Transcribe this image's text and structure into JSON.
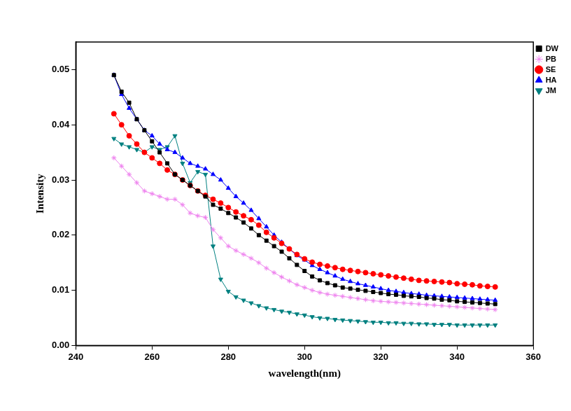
{
  "chart_data": {
    "type": "line",
    "x_label": "wavelength(nm)",
    "y_label": "Intensity",
    "x": [
      250,
      252,
      254,
      256,
      258,
      260,
      262,
      264,
      266,
      268,
      270,
      272,
      274,
      276,
      278,
      280,
      282,
      284,
      286,
      288,
      290,
      292,
      294,
      296,
      298,
      300,
      302,
      304,
      306,
      308,
      310,
      312,
      314,
      316,
      318,
      320,
      322,
      324,
      326,
      328,
      330,
      332,
      334,
      336,
      338,
      340,
      342,
      344,
      346,
      348,
      350
    ],
    "xlim": [
      240,
      360
    ],
    "xticks": [
      240,
      260,
      280,
      300,
      320,
      340,
      360
    ],
    "ylim": [
      0,
      0.055
    ],
    "yticks": [
      {
        "value": 0,
        "label": "0.00"
      },
      {
        "value": 0.01,
        "label": "0.01"
      },
      {
        "value": 0.02,
        "label": "0.02"
      },
      {
        "value": 0.03,
        "label": "0.03"
      },
      {
        "value": 0.04,
        "label": "0.04"
      },
      {
        "value": 0.05,
        "label": "0.05"
      }
    ],
    "grid": false,
    "legend": "top-right",
    "series": [
      {
        "name": "DW",
        "color": "#000000",
        "marker": "square",
        "line_style": "solid",
        "values": [
          0.049,
          0.046,
          0.044,
          0.041,
          0.039,
          0.037,
          0.035,
          0.033,
          0.031,
          0.03,
          0.029,
          0.028,
          0.027,
          0.0255,
          0.0248,
          0.024,
          0.0232,
          0.0223,
          0.0212,
          0.02,
          0.019,
          0.018,
          0.017,
          0.0158,
          0.0146,
          0.0135,
          0.0125,
          0.0118,
          0.0113,
          0.0109,
          0.0105,
          0.0103,
          0.0101,
          0.0099,
          0.0097,
          0.0095,
          0.0093,
          0.0092,
          0.009,
          0.0089,
          0.0088,
          0.0086,
          0.0085,
          0.0083,
          0.0082,
          0.008,
          0.0079,
          0.0078,
          0.0077,
          0.0076,
          0.0075
        ]
      },
      {
        "name": "PB",
        "color": "#ee82ee",
        "marker": "star",
        "line_style": "solid",
        "values": [
          0.034,
          0.0325,
          0.031,
          0.0295,
          0.028,
          0.0275,
          0.027,
          0.0265,
          0.0265,
          0.0255,
          0.024,
          0.0235,
          0.0232,
          0.021,
          0.0195,
          0.018,
          0.0172,
          0.0165,
          0.0158,
          0.015,
          0.014,
          0.0132,
          0.0124,
          0.0117,
          0.011,
          0.0105,
          0.01,
          0.0096,
          0.0093,
          0.0091,
          0.0089,
          0.0087,
          0.0085,
          0.0083,
          0.0081,
          0.008,
          0.0079,
          0.0078,
          0.0077,
          0.0076,
          0.0075,
          0.0074,
          0.0073,
          0.0072,
          0.0071,
          0.007,
          0.0069,
          0.0068,
          0.0067,
          0.0066,
          0.0065
        ]
      },
      {
        "name": "SE",
        "color": "#ff0000",
        "marker": "circle",
        "line_style": "solid",
        "values": [
          0.042,
          0.04,
          0.038,
          0.0365,
          0.035,
          0.034,
          0.033,
          0.0318,
          0.031,
          0.03,
          0.029,
          0.028,
          0.0272,
          0.0265,
          0.0258,
          0.025,
          0.0242,
          0.0235,
          0.0228,
          0.0218,
          0.0205,
          0.0195,
          0.0185,
          0.0175,
          0.0165,
          0.0157,
          0.0151,
          0.0147,
          0.0144,
          0.0141,
          0.0138,
          0.0136,
          0.0134,
          0.0132,
          0.013,
          0.0128,
          0.0126,
          0.0124,
          0.0122,
          0.012,
          0.0118,
          0.0117,
          0.0116,
          0.0115,
          0.0114,
          0.0112,
          0.0111,
          0.011,
          0.0108,
          0.0107,
          0.0106
        ]
      },
      {
        "name": "HA",
        "color": "#0000ff",
        "marker": "triangle",
        "line_style": "solid",
        "values": [
          0.049,
          0.0455,
          0.043,
          0.041,
          0.039,
          0.038,
          0.0365,
          0.0355,
          0.035,
          0.034,
          0.033,
          0.0325,
          0.032,
          0.031,
          0.03,
          0.0285,
          0.027,
          0.0258,
          0.0245,
          0.023,
          0.0215,
          0.02,
          0.0187,
          0.0175,
          0.0163,
          0.0155,
          0.0145,
          0.0138,
          0.0132,
          0.0126,
          0.012,
          0.0116,
          0.0112,
          0.0109,
          0.0106,
          0.0103,
          0.01,
          0.0098,
          0.0096,
          0.0094,
          0.0093,
          0.0091,
          0.009,
          0.0089,
          0.0088,
          0.0087,
          0.0086,
          0.0085,
          0.0084,
          0.0083,
          0.0082
        ]
      },
      {
        "name": "JM",
        "color": "#008080",
        "marker": "triangle-down",
        "line_style": "solid",
        "values": [
          0.0375,
          0.0365,
          0.036,
          0.0355,
          0.035,
          0.036,
          0.0355,
          0.036,
          0.038,
          0.033,
          0.0295,
          0.0315,
          0.031,
          0.018,
          0.012,
          0.0098,
          0.0088,
          0.0082,
          0.0077,
          0.0072,
          0.0068,
          0.0065,
          0.0062,
          0.006,
          0.0057,
          0.0055,
          0.0052,
          0.005,
          0.0049,
          0.0047,
          0.0046,
          0.0045,
          0.0044,
          0.0043,
          0.0042,
          0.0042,
          0.0041,
          0.0041,
          0.004,
          0.004,
          0.0039,
          0.0039,
          0.0038,
          0.0038,
          0.0038,
          0.0037,
          0.0037,
          0.0037,
          0.0037,
          0.0037,
          0.0037
        ]
      }
    ]
  }
}
